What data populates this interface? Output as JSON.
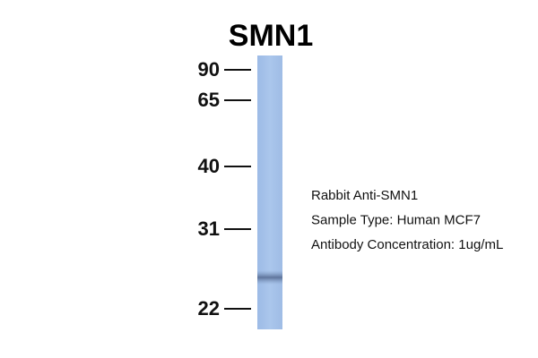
{
  "header": {
    "title": "SMN1"
  },
  "markers": [
    "90",
    "65",
    "40",
    "31",
    "22"
  ],
  "description": [
    "Rabbit Anti-SMN1",
    "Sample Type: Human MCF7",
    "Antibody Concentration: 1ug/mL"
  ]
}
